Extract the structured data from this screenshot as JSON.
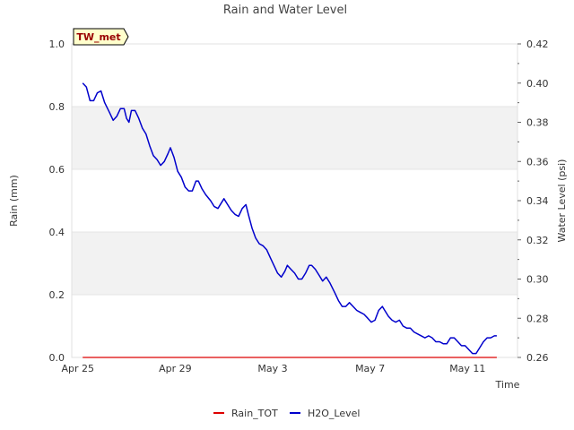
{
  "chart_data": {
    "type": "line",
    "title": "Rain and Water Level",
    "station_label": "TW_met",
    "xlabel": "Time",
    "ylabel_left": "Rain (mm)",
    "ylabel_right": "Water Level (psi)",
    "x_ticks": [
      {
        "day": 0,
        "label": "Apr 25"
      },
      {
        "day": 4,
        "label": "Apr 29"
      },
      {
        "day": 8,
        "label": "May 3"
      },
      {
        "day": 12,
        "label": "May 7"
      },
      {
        "day": 16,
        "label": "May 11"
      }
    ],
    "xlim": [
      -0.25,
      18.05
    ],
    "ylim_left": [
      0,
      1
    ],
    "ylim_right": [
      0.26,
      0.42
    ],
    "y_ticks_left": [
      "0.0",
      "0.2",
      "0.4",
      "0.6",
      "0.8",
      "1.0"
    ],
    "y_ticks_right": [
      "0.26",
      "0.28",
      "0.30",
      "0.32",
      "0.34",
      "0.36",
      "0.38",
      "0.40",
      "0.42"
    ],
    "series": [
      {
        "name": "Rain_TOT",
        "color": "#dd0000",
        "axis": "left",
        "points": [
          [
            0.2,
            0
          ],
          [
            17.2,
            0
          ]
        ]
      },
      {
        "name": "H2O_Level",
        "color": "#0000cc",
        "axis": "right",
        "points": [
          [
            0.2,
            0.4
          ],
          [
            0.35,
            0.398
          ],
          [
            0.5,
            0.391
          ],
          [
            0.65,
            0.391
          ],
          [
            0.8,
            0.395
          ],
          [
            0.95,
            0.396
          ],
          [
            1.1,
            0.39
          ],
          [
            1.3,
            0.385
          ],
          [
            1.45,
            0.381
          ],
          [
            1.6,
            0.383
          ],
          [
            1.75,
            0.387
          ],
          [
            1.9,
            0.387
          ],
          [
            2.0,
            0.382
          ],
          [
            2.1,
            0.38
          ],
          [
            2.2,
            0.386
          ],
          [
            2.35,
            0.386
          ],
          [
            2.5,
            0.382
          ],
          [
            2.65,
            0.377
          ],
          [
            2.8,
            0.374
          ],
          [
            2.95,
            0.368
          ],
          [
            3.1,
            0.363
          ],
          [
            3.25,
            0.361
          ],
          [
            3.4,
            0.358
          ],
          [
            3.55,
            0.36
          ],
          [
            3.7,
            0.364
          ],
          [
            3.8,
            0.367
          ],
          [
            3.95,
            0.362
          ],
          [
            4.1,
            0.355
          ],
          [
            4.25,
            0.352
          ],
          [
            4.4,
            0.347
          ],
          [
            4.55,
            0.345
          ],
          [
            4.7,
            0.345
          ],
          [
            4.85,
            0.35
          ],
          [
            4.95,
            0.35
          ],
          [
            5.1,
            0.346
          ],
          [
            5.25,
            0.343
          ],
          [
            5.45,
            0.34
          ],
          [
            5.6,
            0.337
          ],
          [
            5.75,
            0.336
          ],
          [
            5.9,
            0.339
          ],
          [
            6.0,
            0.341
          ],
          [
            6.15,
            0.338
          ],
          [
            6.3,
            0.335
          ],
          [
            6.45,
            0.333
          ],
          [
            6.6,
            0.332
          ],
          [
            6.75,
            0.336
          ],
          [
            6.9,
            0.338
          ],
          [
            7.0,
            0.333
          ],
          [
            7.15,
            0.326
          ],
          [
            7.3,
            0.321
          ],
          [
            7.45,
            0.318
          ],
          [
            7.6,
            0.317
          ],
          [
            7.75,
            0.315
          ],
          [
            7.9,
            0.311
          ],
          [
            8.05,
            0.307
          ],
          [
            8.2,
            0.303
          ],
          [
            8.35,
            0.301
          ],
          [
            8.5,
            0.304
          ],
          [
            8.6,
            0.307
          ],
          [
            8.75,
            0.305
          ],
          [
            8.9,
            0.303
          ],
          [
            9.05,
            0.3
          ],
          [
            9.2,
            0.3
          ],
          [
            9.35,
            0.303
          ],
          [
            9.5,
            0.307
          ],
          [
            9.6,
            0.307
          ],
          [
            9.75,
            0.305
          ],
          [
            9.9,
            0.302
          ],
          [
            10.05,
            0.299
          ],
          [
            10.2,
            0.301
          ],
          [
            10.35,
            0.298
          ],
          [
            10.55,
            0.293
          ],
          [
            10.7,
            0.289
          ],
          [
            10.85,
            0.286
          ],
          [
            11.0,
            0.286
          ],
          [
            11.15,
            0.288
          ],
          [
            11.3,
            0.286
          ],
          [
            11.45,
            0.284
          ],
          [
            11.6,
            0.283
          ],
          [
            11.75,
            0.282
          ],
          [
            11.9,
            0.28
          ],
          [
            12.05,
            0.278
          ],
          [
            12.2,
            0.279
          ],
          [
            12.35,
            0.284
          ],
          [
            12.5,
            0.286
          ],
          [
            12.6,
            0.284
          ],
          [
            12.75,
            0.281
          ],
          [
            12.9,
            0.279
          ],
          [
            13.05,
            0.278
          ],
          [
            13.2,
            0.279
          ],
          [
            13.35,
            0.276
          ],
          [
            13.5,
            0.275
          ],
          [
            13.65,
            0.275
          ],
          [
            13.8,
            0.273
          ],
          [
            13.95,
            0.272
          ],
          [
            14.1,
            0.271
          ],
          [
            14.25,
            0.27
          ],
          [
            14.4,
            0.271
          ],
          [
            14.55,
            0.27
          ],
          [
            14.7,
            0.268
          ],
          [
            14.85,
            0.268
          ],
          [
            15.0,
            0.267
          ],
          [
            15.15,
            0.267
          ],
          [
            15.3,
            0.27
          ],
          [
            15.45,
            0.27
          ],
          [
            15.6,
            0.268
          ],
          [
            15.75,
            0.266
          ],
          [
            15.9,
            0.266
          ],
          [
            16.05,
            0.264
          ],
          [
            16.2,
            0.262
          ],
          [
            16.35,
            0.262
          ],
          [
            16.5,
            0.265
          ],
          [
            16.65,
            0.268
          ],
          [
            16.8,
            0.27
          ],
          [
            16.95,
            0.27
          ],
          [
            17.1,
            0.271
          ],
          [
            17.2,
            0.271
          ]
        ]
      }
    ],
    "legend_position": "bottom-center",
    "bands": "alternating light-gray horizontal bands"
  }
}
